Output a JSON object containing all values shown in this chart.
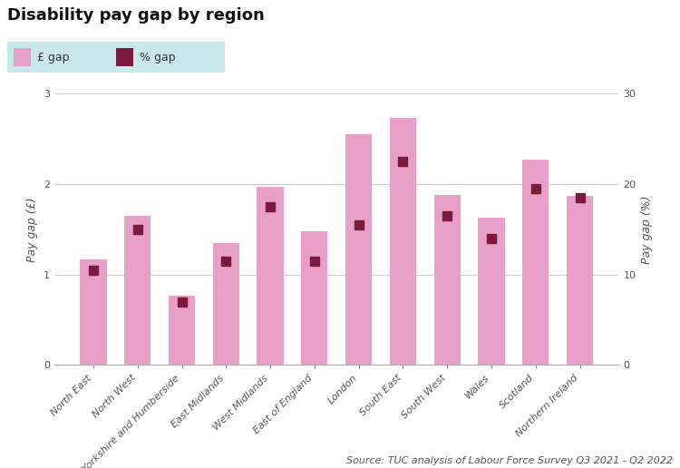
{
  "title": "Disability pay gap by region",
  "source": "Source: TUC analysis of Labour Force Survey Q3 2021 - Q2 2022",
  "categories": [
    "North East",
    "North West",
    "Yorkshire and Humberside",
    "East Midlands",
    "West Midlands",
    "East of England",
    "London",
    "South East",
    "South West",
    "Wales",
    "Scotland",
    "Northern Ireland"
  ],
  "gbp_gap": [
    1.17,
    1.65,
    0.77,
    1.35,
    1.97,
    1.48,
    2.55,
    2.73,
    1.88,
    1.63,
    2.27,
    1.87
  ],
  "pct_gap": [
    10.5,
    15.0,
    7.0,
    11.5,
    17.5,
    11.5,
    15.5,
    22.5,
    16.5,
    14.0,
    19.5,
    18.5
  ],
  "bar_color": "#e8a0c8",
  "marker_color": "#7b1a3c",
  "legend_bar_color": "#e8a0c8",
  "legend_marker_color": "#7b1a3c",
  "legend_bg_color": "#c8e8ec",
  "ylabel_left": "Pay gap (£)",
  "ylabel_right": "Pay gap (%)",
  "ylim_left": [
    0,
    3
  ],
  "ylim_right": [
    0,
    30
  ],
  "yticks_left": [
    0,
    1,
    2,
    3
  ],
  "yticks_right": [
    0,
    10,
    20,
    30
  ],
  "grid_color": "#cccccc",
  "background_color": "#ffffff",
  "title_fontsize": 13,
  "axis_label_fontsize": 9,
  "tick_fontsize": 8,
  "source_fontsize": 8
}
